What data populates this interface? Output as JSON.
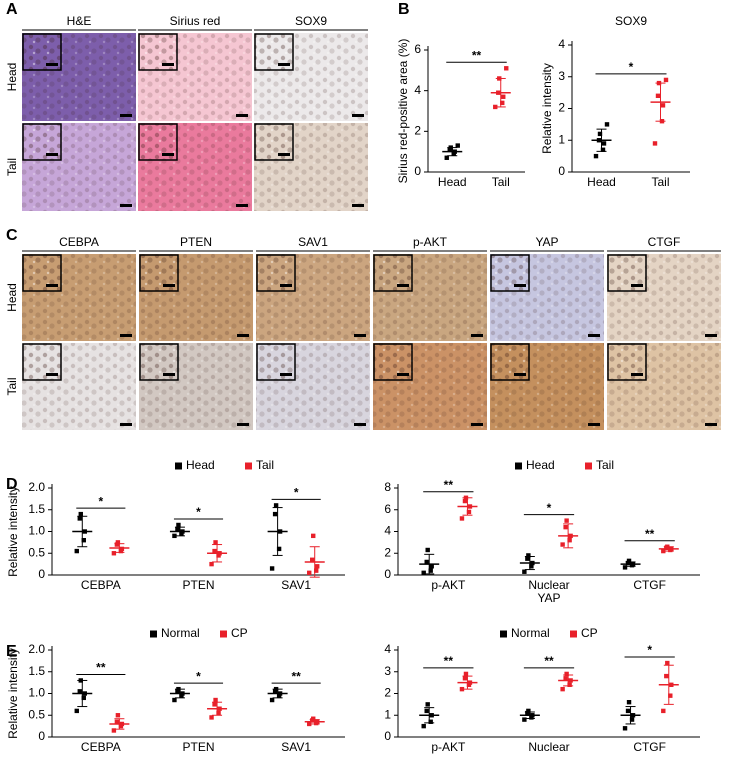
{
  "panel_labels": [
    "A",
    "B",
    "C",
    "D",
    "E"
  ],
  "panel_a": {
    "columns": [
      "H&E",
      "Sirius red",
      "SOX9"
    ],
    "rows": [
      "Head",
      "Tail"
    ]
  },
  "panel_c": {
    "columns": [
      "CEBPA",
      "PTEN",
      "SAV1",
      "p-AKT",
      "YAP",
      "CTGF"
    ],
    "rows": [
      "Head",
      "Tail"
    ]
  },
  "chart_data": [
    {
      "type": "dotplot",
      "y_label": "Sirius red-positive area (%)",
      "ylim": [
        0,
        6
      ],
      "yticks": [
        0,
        2,
        4,
        6
      ],
      "series": [
        {
          "name": "Head",
          "color": "#000000",
          "points": [
            [
              0.7,
              0.9,
              1.0,
              1.1,
              1.2,
              1.3
            ]
          ],
          "means": [
            1.0
          ],
          "sd": [
            0.2
          ]
        },
        {
          "name": "Tail",
          "color": "#e8202a",
          "points": [
            [
              3.2,
              3.4,
              3.7,
              3.9,
              4.6,
              5.1
            ]
          ],
          "means": [
            3.9
          ],
          "sd": [
            0.7
          ]
        }
      ],
      "significance": [
        "**"
      ]
    },
    {
      "type": "dotplot",
      "title": "SOX9",
      "y_label": "Relative intensity",
      "ylim": [
        0,
        4
      ],
      "yticks": [
        0,
        1,
        2,
        3,
        4
      ],
      "series": [
        {
          "name": "Head",
          "color": "#000000",
          "points": [
            [
              0.5,
              0.7,
              0.9,
              1.0,
              1.2,
              1.5
            ]
          ],
          "means": [
            1.0
          ],
          "sd": [
            0.35
          ]
        },
        {
          "name": "Tail",
          "color": "#e8202a",
          "points": [
            [
              0.9,
              1.6,
              2.1,
              2.4,
              2.8,
              2.9
            ]
          ],
          "means": [
            2.2
          ],
          "sd": [
            0.6
          ]
        }
      ],
      "significance": [
        "*"
      ]
    },
    {
      "type": "dotplot",
      "y_label": "Relative intensity",
      "legend": true,
      "categories": [
        "CEBPA",
        "PTEN",
        "SAV1"
      ],
      "ylim": [
        0,
        2
      ],
      "yticks": [
        0,
        0.5,
        {
          "value": 1,
          "label": "1.0"
        },
        1.5,
        {
          "value": 2,
          "label": "2.0"
        }
      ],
      "series": [
        {
          "name": "Head",
          "color": "#000000",
          "points": [
            [
              0.55,
              0.8,
              1.0,
              1.3,
              1.4
            ],
            [
              0.9,
              0.95,
              1.0,
              1.05,
              1.15
            ],
            [
              0.15,
              0.6,
              1.0,
              1.4,
              1.6
            ]
          ],
          "means": [
            1.0,
            1.0,
            1.0
          ],
          "sd": [
            0.35,
            0.1,
            0.55
          ]
        },
        {
          "name": "Tail",
          "color": "#e8202a",
          "points": [
            [
              0.5,
              0.55,
              0.6,
              0.7,
              0.75
            ],
            [
              0.25,
              0.45,
              0.5,
              0.55,
              0.75
            ],
            [
              0.05,
              0.1,
              0.2,
              0.35,
              0.9
            ]
          ],
          "means": [
            0.62,
            0.5,
            0.3
          ],
          "sd": [
            0.1,
            0.2,
            0.35
          ]
        }
      ],
      "significance": [
        "*",
        "*",
        "*"
      ]
    },
    {
      "type": "dotplot",
      "legend": true,
      "categories": [
        "p-AKT",
        "Nuclear YAP",
        "CTGF"
      ],
      "ylim": [
        0,
        8
      ],
      "yticks": [
        0,
        2,
        4,
        6,
        8
      ],
      "series": [
        {
          "name": "Head",
          "color": "#000000",
          "points": [
            [
              0.2,
              0.4,
              0.8,
              1.2,
              2.3
            ],
            [
              0.3,
              0.8,
              1.1,
              1.5,
              1.8
            ],
            [
              0.7,
              0.9,
              1.0,
              1.1,
              1.3
            ]
          ],
          "means": [
            1.0,
            1.1,
            1.0
          ],
          "sd": [
            0.9,
            0.6,
            0.2
          ]
        },
        {
          "name": "Tail",
          "color": "#e8202a",
          "points": [
            [
              5.2,
              5.8,
              6.3,
              6.8,
              7.1
            ],
            [
              2.8,
              3.2,
              3.6,
              4.4,
              5.0
            ],
            [
              2.2,
              2.3,
              2.4,
              2.5,
              2.6
            ]
          ],
          "means": [
            6.3,
            3.6,
            2.4
          ],
          "sd": [
            0.8,
            1.1,
            0.2
          ]
        }
      ],
      "significance": [
        "**",
        "*",
        "**"
      ]
    },
    {
      "type": "dotplot",
      "y_label": "Relative intensity",
      "legend": true,
      "categories": [
        "CEBPA",
        "PTEN",
        "SAV1"
      ],
      "ylim": [
        0,
        2
      ],
      "yticks": [
        0,
        0.5,
        {
          "value": 1,
          "label": "1.0"
        },
        1.5,
        {
          "value": 2,
          "label": "2.0"
        }
      ],
      "series": [
        {
          "name": "Normal",
          "color": "#000000",
          "points": [
            [
              0.6,
              0.9,
              1.0,
              1.05,
              1.3
            ],
            [
              0.85,
              0.95,
              1.0,
              1.05,
              1.1
            ],
            [
              0.85,
              0.95,
              1.0,
              1.05,
              1.1
            ]
          ],
          "means": [
            1.0,
            1.0,
            1.0
          ],
          "sd": [
            0.3,
            0.1,
            0.1
          ]
        },
        {
          "name": "CP",
          "color": "#e8202a",
          "points": [
            [
              0.15,
              0.25,
              0.3,
              0.35,
              0.5
            ],
            [
              0.45,
              0.55,
              0.65,
              0.75,
              0.85
            ],
            [
              0.3,
              0.32,
              0.35,
              0.38,
              0.42
            ]
          ],
          "means": [
            0.3,
            0.65,
            0.35
          ],
          "sd": [
            0.12,
            0.15,
            0.05
          ]
        }
      ],
      "significance": [
        "**",
        "*",
        "**"
      ]
    },
    {
      "type": "dotplot",
      "legend": true,
      "categories": [
        "p-AKT",
        "Nuclear",
        "CTGF"
      ],
      "ylim": [
        0,
        4
      ],
      "yticks": [
        0,
        1,
        2,
        3,
        4
      ],
      "series": [
        {
          "name": "Normal",
          "color": "#000000",
          "points": [
            [
              0.5,
              0.7,
              1.0,
              1.2,
              1.5
            ],
            [
              0.8,
              0.9,
              1.0,
              1.1,
              1.2
            ],
            [
              0.4,
              0.8,
              1.0,
              1.2,
              1.6
            ]
          ],
          "means": [
            1.0,
            1.0,
            1.0
          ],
          "sd": [
            0.35,
            0.15,
            0.4
          ]
        },
        {
          "name": "CP",
          "color": "#e8202a",
          "points": [
            [
              2.2,
              2.4,
              2.5,
              2.7,
              2.9
            ],
            [
              2.2,
              2.4,
              2.6,
              2.7,
              2.9
            ],
            [
              1.2,
              1.9,
              2.4,
              2.8,
              3.4
            ]
          ],
          "means": [
            2.5,
            2.6,
            2.4
          ],
          "sd": [
            0.3,
            0.25,
            0.9
          ]
        }
      ],
      "significance": [
        "**",
        "**",
        "*"
      ]
    }
  ]
}
